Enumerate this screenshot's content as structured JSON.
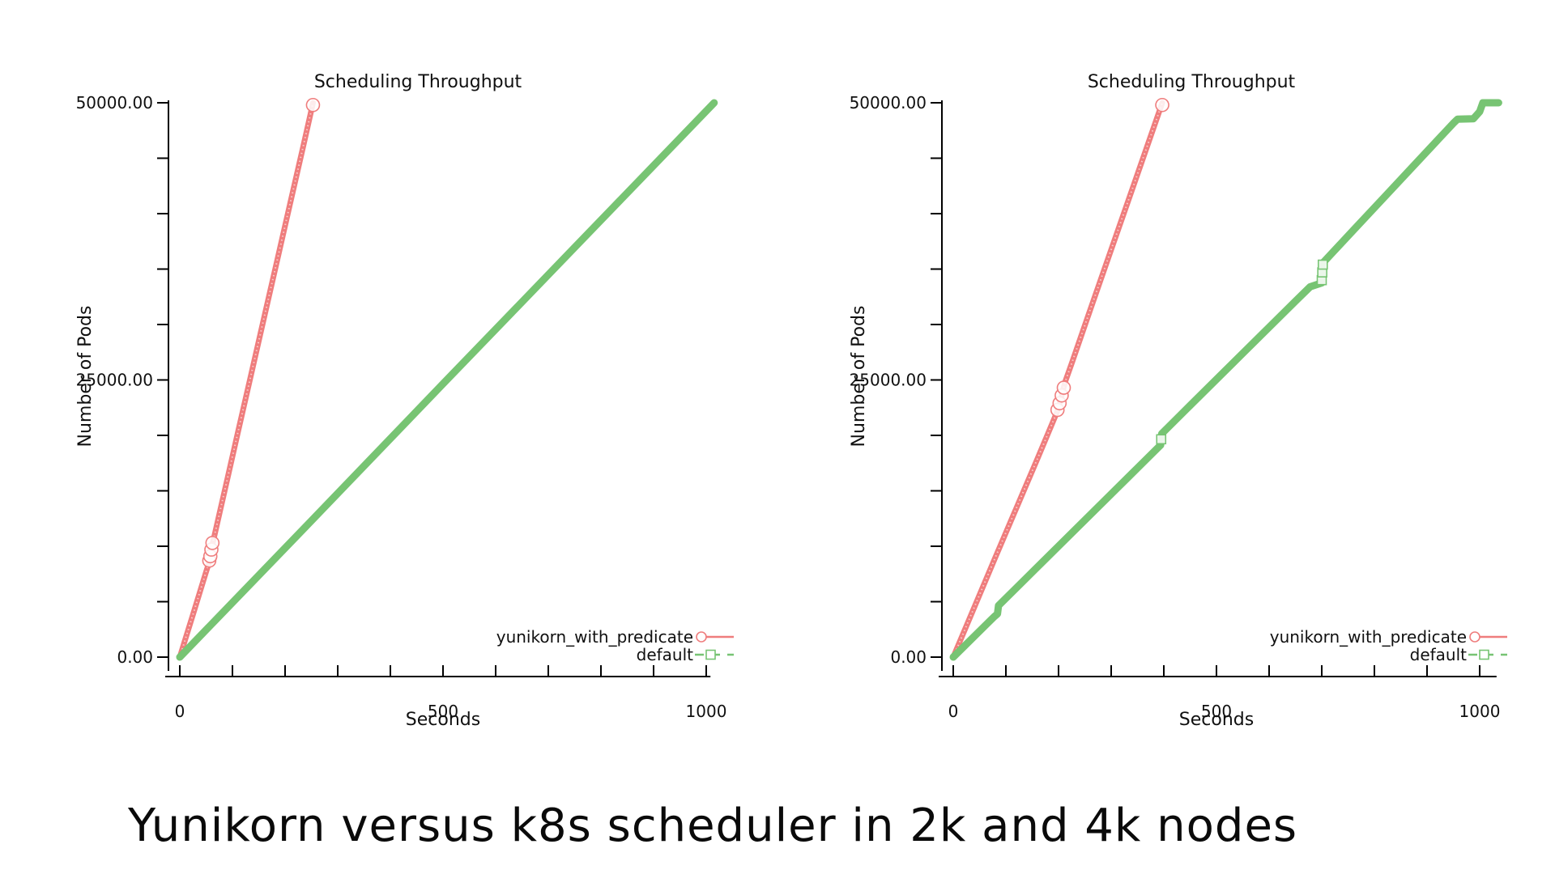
{
  "caption": "Yunikorn versus k8s scheduler in 2k and 4k nodes",
  "colors": {
    "red": "#ef7d7d",
    "green": "#77c473",
    "axis": "#000000",
    "text": "#101010"
  },
  "chart_data": [
    {
      "type": "line",
      "title": "Scheduling Throughput",
      "xlabel": "Seconds",
      "ylabel": "Number of Pods",
      "xlim": [
        0,
        1008
      ],
      "ylim": [
        0,
        50000
      ],
      "grid": false,
      "legend_position": "bottom-right-inside",
      "x_major_ticks": [
        {
          "v": 0,
          "label": "0"
        },
        {
          "v": 500,
          "label": "500"
        },
        {
          "v": 1000,
          "label": "1000"
        }
      ],
      "x_minor_step": 100,
      "y_major_ticks": [
        {
          "v": 0,
          "label": "0.00"
        },
        {
          "v": 25000,
          "label": "25000.00"
        },
        {
          "v": 50000,
          "label": "50000.00"
        }
      ],
      "y_minor_step": 5000,
      "series": [
        {
          "name": "yunikorn_with_predicate",
          "color": "red",
          "marker": "circle",
          "style": "solid",
          "width": 7,
          "textured": true,
          "points": [
            [
              0,
              0
            ],
            [
              12,
              1850
            ],
            [
              25,
              3850
            ],
            [
              38,
              5850
            ],
            [
              50,
              7700
            ],
            [
              55,
              8450
            ],
            [
              58,
              8900
            ],
            [
              60,
              9300
            ],
            [
              62,
              10150
            ],
            [
              66,
              11000
            ],
            [
              75,
              12900
            ],
            [
              90,
              16000
            ],
            [
              110,
              20200
            ],
            [
              135,
              25400
            ],
            [
              160,
              30600
            ],
            [
              185,
              35800
            ],
            [
              210,
              41000
            ],
            [
              235,
              46200
            ],
            [
              253,
              50000
            ]
          ]
        },
        {
          "name": "default",
          "color": "green",
          "marker": "square",
          "style": "dashed-in-legend",
          "width": 9,
          "textured": false,
          "points": [
            [
              0,
              0
            ],
            [
              250,
              12300
            ],
            [
              500,
              24650
            ],
            [
              750,
              36950
            ],
            [
              1015,
              50000
            ]
          ]
        }
      ],
      "marker_clusters": [
        {
          "series": "yunikorn_with_predicate",
          "shape": "circle",
          "color": "red",
          "points": [
            [
              56,
              8700
            ],
            [
              58,
              9100
            ],
            [
              60,
              9700
            ],
            [
              62,
              10300
            ],
            [
              253,
              49800
            ]
          ]
        }
      ],
      "legend": [
        {
          "label": "yunikorn_with_predicate",
          "series": "yunikorn_with_predicate"
        },
        {
          "label": "default",
          "series": "default"
        }
      ]
    },
    {
      "type": "line",
      "title": "Scheduling Throughput",
      "xlabel": "Seconds",
      "ylabel": "Number of Pods",
      "xlim": [
        0,
        1032
      ],
      "ylim": [
        0,
        50000
      ],
      "grid": false,
      "legend_position": "bottom-right-inside",
      "x_major_ticks": [
        {
          "v": 0,
          "label": "0"
        },
        {
          "v": 500,
          "label": "500"
        },
        {
          "v": 1000,
          "label": "1000"
        }
      ],
      "x_minor_step": 100,
      "y_major_ticks": [
        {
          "v": 0,
          "label": "0.00"
        },
        {
          "v": 25000,
          "label": "25000.00"
        },
        {
          "v": 50000,
          "label": "50000.00"
        }
      ],
      "y_minor_step": 5000,
      "series": [
        {
          "name": "yunikorn_with_predicate",
          "color": "red",
          "marker": "circle",
          "style": "solid",
          "width": 7,
          "textured": true,
          "points": [
            [
              0,
              0
            ],
            [
              40,
              4500
            ],
            [
              80,
              9000
            ],
            [
              120,
              13450
            ],
            [
              160,
              17900
            ],
            [
              190,
              21300
            ],
            [
              197,
              22100
            ],
            [
              201,
              22700
            ],
            [
              205,
              23400
            ],
            [
              209,
              24200
            ],
            [
              213,
              24900
            ],
            [
              225,
              26500
            ],
            [
              260,
              31300
            ],
            [
              300,
              36750
            ],
            [
              340,
              42200
            ],
            [
              370,
              46300
            ],
            [
              397,
              50000
            ]
          ]
        },
        {
          "name": "default",
          "color": "green",
          "marker": "square",
          "style": "dashed-in-legend",
          "width": 9,
          "textured": false,
          "points": [
            [
              0,
              0
            ],
            [
              60,
              2820
            ],
            [
              78,
              3660
            ],
            [
              84,
              3900
            ],
            [
              86,
              4650
            ],
            [
              150,
              7660
            ],
            [
              250,
              12360
            ],
            [
              350,
              17060
            ],
            [
              388,
              18850
            ],
            [
              394,
              19130
            ],
            [
              396,
              20150
            ],
            [
              450,
              22700
            ],
            [
              550,
              27400
            ],
            [
              650,
              32100
            ],
            [
              678,
              33400
            ],
            [
              700,
              33750
            ],
            [
              702,
              35550
            ],
            [
              760,
              38500
            ],
            [
              820,
              41550
            ],
            [
              880,
              44600
            ],
            [
              950,
              48150
            ],
            [
              958,
              48520
            ],
            [
              988,
              48560
            ],
            [
              1000,
              49200
            ],
            [
              1006,
              50000
            ],
            [
              1036,
              50000
            ]
          ]
        }
      ],
      "marker_clusters": [
        {
          "series": "yunikorn_with_predicate",
          "shape": "circle",
          "color": "red",
          "points": [
            [
              198,
              22300
            ],
            [
              202,
              22900
            ],
            [
              206,
              23600
            ],
            [
              210,
              24300
            ],
            [
              397,
              49800
            ]
          ]
        },
        {
          "series": "default",
          "shape": "square",
          "color": "green",
          "points": [
            [
              700,
              34000
            ],
            [
              701,
              34700
            ],
            [
              702,
              35400
            ],
            [
              395,
              19650
            ]
          ]
        }
      ],
      "legend": [
        {
          "label": "yunikorn_with_predicate",
          "series": "yunikorn_with_predicate"
        },
        {
          "label": "default",
          "series": "default"
        }
      ]
    }
  ]
}
